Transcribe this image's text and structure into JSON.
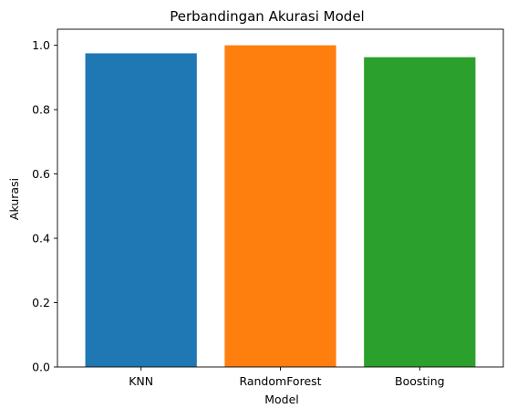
{
  "chart_data": {
    "type": "bar",
    "title": "Perbandingan Akurasi Model",
    "xlabel": "Model",
    "ylabel": "Akurasi",
    "categories": [
      "KNN",
      "RandomForest",
      "Boosting"
    ],
    "values": [
      0.975,
      1.0,
      0.963
    ],
    "colors": [
      "#1f77b4",
      "#ff7f0e",
      "#2ca02c"
    ],
    "ylim": [
      0,
      1.05
    ],
    "yticks": [
      "0.0",
      "0.2",
      "0.4",
      "0.6",
      "0.8",
      "1.0"
    ],
    "grid": false,
    "legend": "none"
  }
}
